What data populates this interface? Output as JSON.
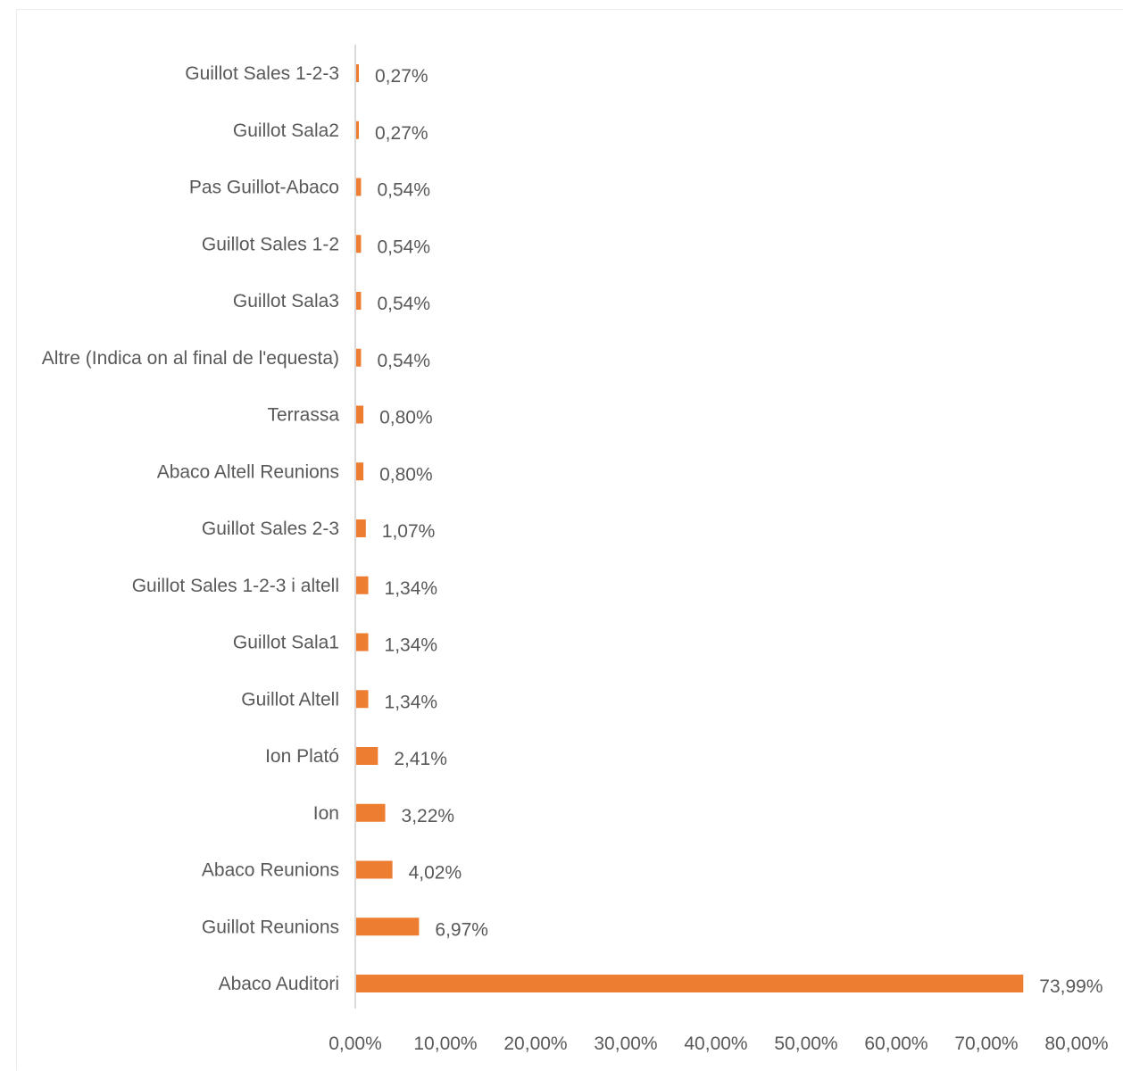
{
  "chart_data": {
    "type": "bar",
    "orientation": "horizontal",
    "title": "",
    "xlabel": "",
    "ylabel": "",
    "categories": [
      "Guillot Sales 1-2-3",
      "Guillot Sala2",
      "Pas Guillot-Abaco",
      "Guillot Sales 1-2",
      "Guillot Sala3",
      "Altre (Indica on al final de l'equesta)",
      "Terrassa",
      "Abaco Altell Reunions",
      "Guillot Sales 2-3",
      "Guillot Sales 1-2-3 i altell",
      "Guillot Sala1",
      "Guillot Altell",
      "Ion Plató",
      "Ion",
      "Abaco Reunions",
      "Guillot Reunions",
      "Abaco Auditori"
    ],
    "values": [
      0.27,
      0.27,
      0.54,
      0.54,
      0.54,
      0.54,
      0.8,
      0.8,
      1.07,
      1.34,
      1.34,
      1.34,
      2.41,
      3.22,
      4.02,
      6.97,
      73.99
    ],
    "value_labels": [
      "0,27%",
      "0,27%",
      "0,54%",
      "0,54%",
      "0,54%",
      "0,54%",
      "0,80%",
      "0,80%",
      "1,07%",
      "1,34%",
      "1,34%",
      "1,34%",
      "2,41%",
      "3,22%",
      "4,02%",
      "6,97%",
      "73,99%"
    ],
    "x_ticks": [
      0,
      10,
      20,
      30,
      40,
      50,
      60,
      70,
      80
    ],
    "x_tick_labels": [
      "0,00%",
      "10,00%",
      "20,00%",
      "30,00%",
      "40,00%",
      "50,00%",
      "60,00%",
      "70,00%",
      "80,00%"
    ],
    "xlim": [
      0,
      80
    ],
    "grid": false,
    "legend": "none",
    "colors": {
      "bar": "#ED7D31",
      "axis": "#D9D9D9",
      "text": "#595959"
    }
  }
}
